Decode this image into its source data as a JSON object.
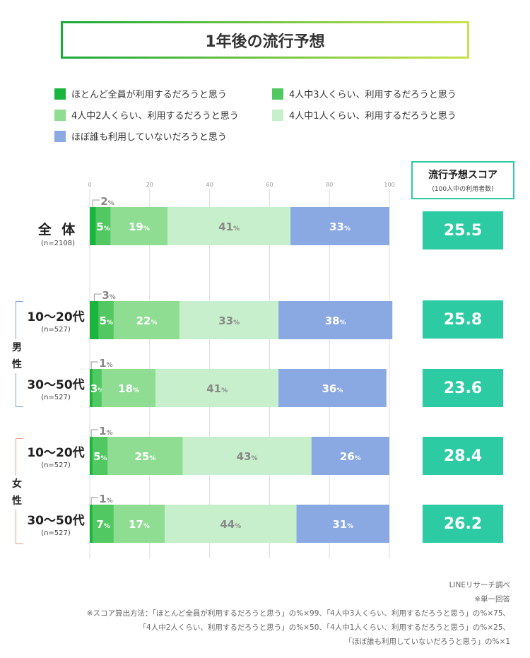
{
  "title": "1年後の流行予想",
  "legend": [
    {
      "label": "ほとんど全員が利用するだろうと思う",
      "color": "#1ab53c"
    },
    {
      "label": "4人中3人くらい、利用するだろうと思う",
      "color": "#52c862"
    },
    {
      "label": "4人中2人くらい、利用するだろうと思う",
      "color": "#8edd92"
    },
    {
      "label": "4人中1人くらい、利用するだろうと思う",
      "color": "#c8efcb"
    },
    {
      "label": "ほぼ誰も利用していないだろうと思う",
      "color": "#8aa8e2"
    }
  ],
  "groups": [
    {
      "label": "男性",
      "color": "#7a9fd8"
    },
    {
      "label": "女性",
      "color": "#ee9a80"
    }
  ],
  "rows": [
    {
      "label": "全 体",
      "sub": "(n=2108)"
    },
    {
      "label": "10〜20代",
      "sub": "(n=527)"
    },
    {
      "label": "30〜50代",
      "sub": "(n=527)"
    },
    {
      "label": "10〜20代",
      "sub": "(n=527)"
    },
    {
      "label": "30〜50代",
      "sub": "(n=527)"
    }
  ],
  "score_header": {
    "title": "流行予想スコア",
    "subtitle": "(100人中の利用者数)"
  },
  "scores": [
    "25.5",
    "25.8",
    "23.6",
    "28.4",
    "26.2"
  ],
  "notes": [
    "LINEリサーチ調べ",
    "※単一回答",
    "※スコア算出方法：「ほとんど全員が利用するだろうと思う」の%×99、「4人中3人くらい、利用するだろうと思う」の%×75、",
    "「4人中2人くらい、利用するだろうと思う」の%×50、「4人中1人くらい、利用するだろうと思う」の%×25、",
    "「ほぼ誰も利用していないだろうと思う」の%×1"
  ],
  "chart_data": {
    "type": "bar",
    "orientation": "horizontal-stacked",
    "title": "1年後の流行予想",
    "categories": [
      "全体",
      "男性 10〜20代",
      "男性 30〜50代",
      "女性 10〜20代",
      "女性 30〜50代"
    ],
    "xlim": [
      0,
      100
    ],
    "ticks": [
      0,
      20,
      40,
      60,
      80,
      100
    ],
    "unit": "%",
    "series": [
      {
        "name": "ほとんど全員が利用するだろうと思う",
        "values": [
          2,
          3,
          1,
          1,
          1
        ]
      },
      {
        "name": "4人中3人くらい、利用するだろうと思う",
        "values": [
          5,
          5,
          3,
          5,
          7
        ]
      },
      {
        "name": "4人中2人くらい、利用するだろうと思う",
        "values": [
          19,
          22,
          18,
          25,
          17
        ]
      },
      {
        "name": "4人中1人くらい、利用するだろうと思う",
        "values": [
          41,
          33,
          41,
          43,
          44
        ]
      },
      {
        "name": "ほぼ誰も利用していないだろうと思う",
        "values": [
          33,
          38,
          36,
          26,
          31
        ]
      }
    ]
  }
}
